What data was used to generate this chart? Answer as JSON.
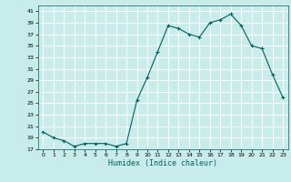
{
  "title": "",
  "xlabel": "Humidex (Indice chaleur)",
  "ylabel": "",
  "bg_color": "#c8ece9",
  "grid_color": "#ffffff",
  "line_color": "#006060",
  "marker_color": "#006060",
  "ylim": [
    17,
    42
  ],
  "xlim": [
    -0.5,
    23.5
  ],
  "yticks": [
    17,
    19,
    21,
    23,
    25,
    27,
    29,
    31,
    33,
    35,
    37,
    39,
    41
  ],
  "xticks": [
    0,
    1,
    2,
    3,
    4,
    5,
    6,
    7,
    8,
    9,
    10,
    11,
    12,
    13,
    14,
    15,
    16,
    17,
    18,
    19,
    20,
    21,
    22,
    23
  ],
  "x": [
    0,
    1,
    2,
    3,
    4,
    5,
    6,
    7,
    8,
    9,
    10,
    11,
    12,
    13,
    14,
    15,
    16,
    17,
    18,
    19,
    20,
    21,
    22,
    23
  ],
  "y": [
    20.0,
    19.0,
    18.5,
    17.5,
    18.0,
    18.0,
    18.0,
    17.5,
    18.0,
    25.5,
    29.5,
    34.0,
    38.5,
    38.0,
    37.0,
    36.5,
    39.0,
    39.5,
    40.5,
    38.5,
    35.0,
    34.5,
    30.0,
    26.0
  ]
}
